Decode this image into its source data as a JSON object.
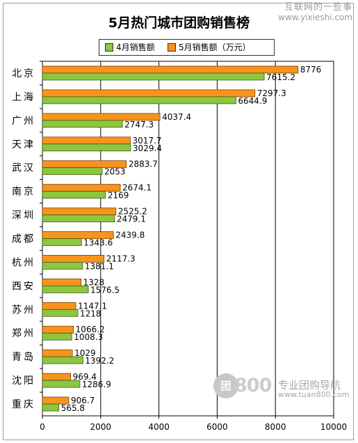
{
  "watermark_top": {
    "line1": "互联网的一些事",
    "line2": "www.yixieshi.com"
  },
  "watermark_bottom": {
    "logo": "团",
    "number": "800",
    "tagline": "专业团购导航",
    "url": "www.tuan800.com"
  },
  "colors": {
    "april": "#8dc63f",
    "may": "#f7941d",
    "april_border": "#3a5e10",
    "may_border": "#7a3e00",
    "grid": "#000000",
    "axis": "#000000"
  },
  "chart_data": {
    "type": "bar",
    "orientation": "horizontal",
    "title": "5月热门城市团购销售榜",
    "categories": [
      "北京",
      "上海",
      "广州",
      "天津",
      "武汉",
      "南京",
      "深圳",
      "成都",
      "杭州",
      "西安",
      "苏州",
      "郑州",
      "青岛",
      "沈阳",
      "重庆"
    ],
    "series": [
      {
        "name": "5月销售额（万元）",
        "key": "may",
        "values": [
          8776,
          7297.3,
          4037.4,
          3017.7,
          2883.7,
          2674.1,
          2525.2,
          2439.8,
          2117.3,
          1328,
          1147.1,
          1066.2,
          1029,
          969.4,
          906.7
        ],
        "labels": [
          "8776",
          "7297.3",
          "4037.4",
          "3017.7",
          "2883.7",
          "2674.1",
          "2525.2",
          "2439.8",
          "2117.3",
          "1328",
          "1147.1",
          "1066.2",
          "1029",
          "969.4",
          "906.7"
        ]
      },
      {
        "name": "4月销售额",
        "key": "april",
        "values": [
          7615.2,
          6644.9,
          2747.3,
          3029.4,
          2053,
          2169,
          2479.1,
          1343.6,
          1381.1,
          1576.5,
          1218,
          1008.3,
          1392.2,
          1286.9,
          565.8
        ],
        "labels": [
          "7615.2",
          "6644.9",
          "2747.3",
          "3029.4",
          "2053",
          "2169",
          "2479.1",
          "1343.6",
          "1381.1",
          "1576.5",
          "1218",
          "1008.3",
          "1392.2",
          "1286.9",
          "565.8"
        ]
      }
    ],
    "legend_order": [
      "april",
      "may"
    ],
    "xlim": [
      0,
      10000
    ],
    "xticks": [
      0,
      2000,
      4000,
      6000,
      8000,
      10000
    ],
    "xtick_labels": [
      "0",
      "2000",
      "4000",
      "6000",
      "8000",
      "10000"
    ],
    "grid": "vertical",
    "legend_position": "top"
  }
}
